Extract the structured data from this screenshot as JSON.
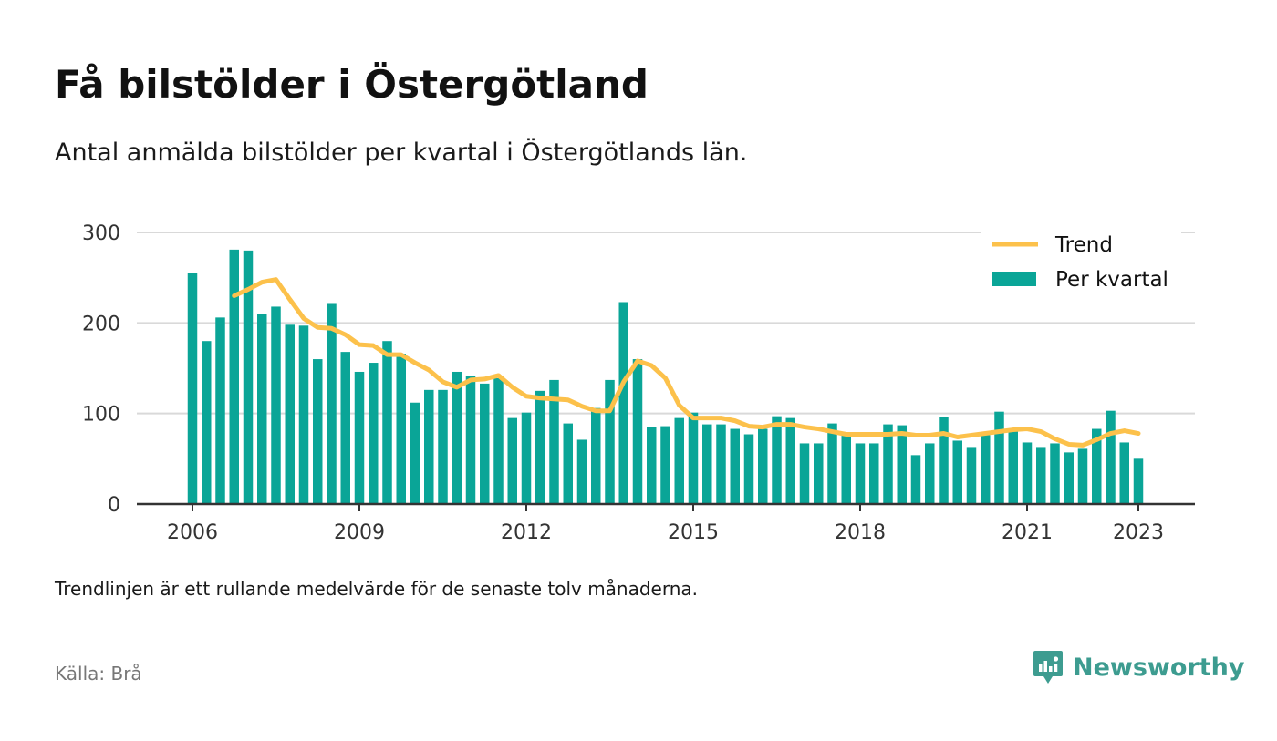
{
  "title": "Få bilstölder i Östergötland",
  "subtitle": "Antal anmälda bilstölder per kvartal i Östergötlands län.",
  "note": "Trendlinjen är ett rullande medelvärde för de senaste tolv månaderna.",
  "source": "Källa: Brå",
  "brand": {
    "name": "Newsworthy",
    "icon": "newsworthy-logo-icon",
    "color": "#3d9c90"
  },
  "colors": {
    "bars": "#0aa597",
    "trend": "#fcc14b",
    "grid": "#d9d9d9",
    "axis": "#333333"
  },
  "chart_data": {
    "type": "bar",
    "x_start": "2006",
    "x_ticks": [
      "2006",
      "2009",
      "2012",
      "2015",
      "2018",
      "2021",
      "2023"
    ],
    "y_ticks": [
      "0",
      "100",
      "200",
      "300"
    ],
    "ylim": [
      0,
      300
    ],
    "grid": true,
    "legend_position": "top-right",
    "series": [
      {
        "name": "Per kvartal",
        "type": "bar",
        "values": [
          255,
          180,
          206,
          281,
          280,
          210,
          218,
          198,
          197,
          160,
          222,
          168,
          146,
          156,
          180,
          166,
          112,
          126,
          126,
          146,
          141,
          133,
          139,
          95,
          101,
          125,
          137,
          89,
          71,
          106,
          137,
          223,
          160,
          85,
          86,
          95,
          101,
          88,
          88,
          83,
          77,
          83,
          97,
          95,
          67,
          67,
          89,
          77,
          67,
          67,
          88,
          87,
          54,
          67,
          96,
          70,
          63,
          76,
          102,
          80,
          68,
          63,
          67,
          57,
          61,
          83,
          103,
          68,
          50
        ]
      },
      {
        "name": "Trend",
        "type": "line",
        "values": [
          null,
          null,
          null,
          230,
          237,
          245,
          248,
          226,
          205,
          195,
          194,
          187,
          176,
          175,
          165,
          165,
          156,
          148,
          135,
          129,
          137,
          138,
          142,
          129,
          119,
          117,
          116,
          115,
          108,
          103,
          103,
          135,
          158,
          153,
          139,
          109,
          95,
          95,
          95,
          92,
          86,
          85,
          88,
          88,
          85,
          83,
          80,
          77,
          77,
          77,
          77,
          78,
          76,
          76,
          78,
          74,
          76,
          78,
          80,
          82,
          83,
          80,
          72,
          66,
          65,
          71,
          78,
          81,
          78
        ]
      }
    ]
  }
}
